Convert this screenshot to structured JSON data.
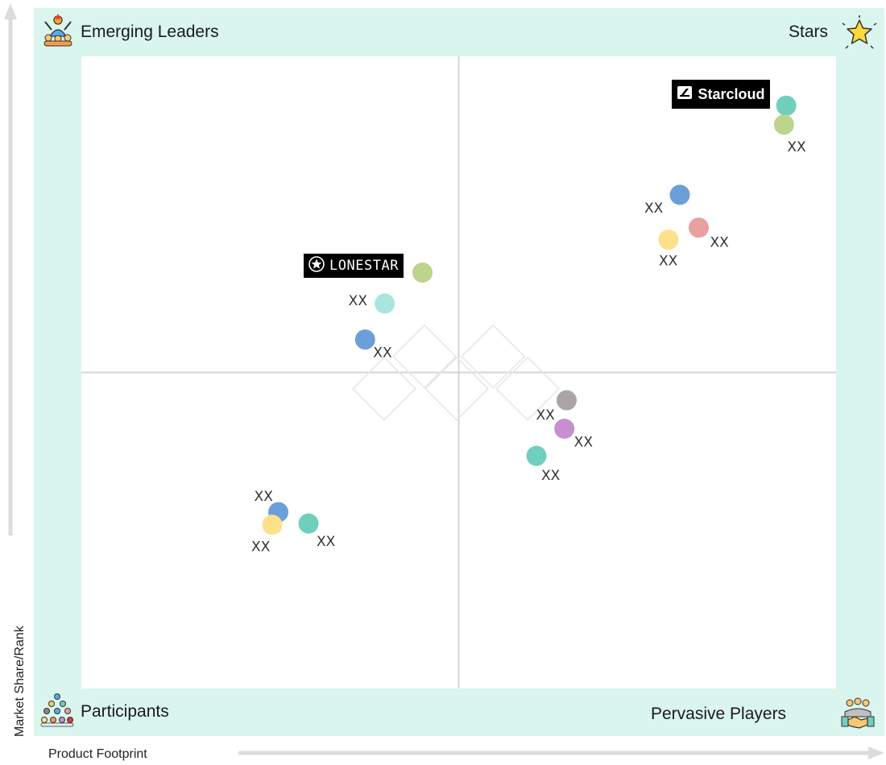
{
  "quadrants": {
    "top_left": {
      "label": "Emerging Leaders",
      "icon": "team-leader-icon"
    },
    "top_right": {
      "label": "Stars",
      "icon": "star-icon"
    },
    "bottom_left": {
      "label": "Participants",
      "icon": "group-people-icon"
    },
    "bottom_right": {
      "label": "Pervasive Players",
      "icon": "handshake-icon"
    }
  },
  "axes": {
    "y_label": "Market Share/Rank",
    "x_label": "Product Footprint"
  },
  "brands": [
    {
      "name": "LONESTAR",
      "icon": "star-circle-icon"
    },
    {
      "name": "Starcloud",
      "icon": "cloud-logo-icon"
    }
  ],
  "colors": {
    "frame": "#d9f5ee",
    "teal": "#6fcfbd",
    "light_teal": "#a8e6db",
    "olive": "#bcd48c",
    "blue": "#6b9fd9",
    "red": "#e8a0a0",
    "yellow": "#fde08a",
    "gray": "#a9a5a6",
    "purple": "#c88fcf"
  },
  "chart_data": {
    "type": "scatter",
    "title": "",
    "xlabel": "Product Footprint",
    "ylabel": "Market Share/Rank",
    "xlim": [
      0,
      100
    ],
    "ylim": [
      0,
      100
    ],
    "grid": false,
    "quadrant_divider": {
      "x": 50,
      "y": 50
    },
    "points": [
      {
        "x": 93.4,
        "y": 92.2,
        "color": "teal",
        "label": ""
      },
      {
        "x": 93.1,
        "y": 89.2,
        "color": "olive",
        "label": "XX"
      },
      {
        "x": 79.3,
        "y": 78.1,
        "color": "blue",
        "label": "XX"
      },
      {
        "x": 81.8,
        "y": 72.9,
        "color": "red",
        "label": "XX"
      },
      {
        "x": 77.8,
        "y": 71.0,
        "color": "yellow",
        "label": "XX"
      },
      {
        "x": 45.2,
        "y": 65.8,
        "color": "olive",
        "label": ""
      },
      {
        "x": 40.2,
        "y": 60.9,
        "color": "light_teal",
        "label": "XX"
      },
      {
        "x": 37.6,
        "y": 55.2,
        "color": "blue",
        "label": "XX"
      },
      {
        "x": 64.3,
        "y": 45.6,
        "color": "gray",
        "label": "XX"
      },
      {
        "x": 64.0,
        "y": 41.1,
        "color": "purple",
        "label": "XX"
      },
      {
        "x": 60.3,
        "y": 36.8,
        "color": "teal",
        "label": "XX"
      },
      {
        "x": 26.1,
        "y": 27.9,
        "color": "blue",
        "label": "XX"
      },
      {
        "x": 25.3,
        "y": 25.9,
        "color": "yellow",
        "label": "XX"
      },
      {
        "x": 30.1,
        "y": 26.1,
        "color": "teal",
        "label": "XX"
      }
    ]
  }
}
